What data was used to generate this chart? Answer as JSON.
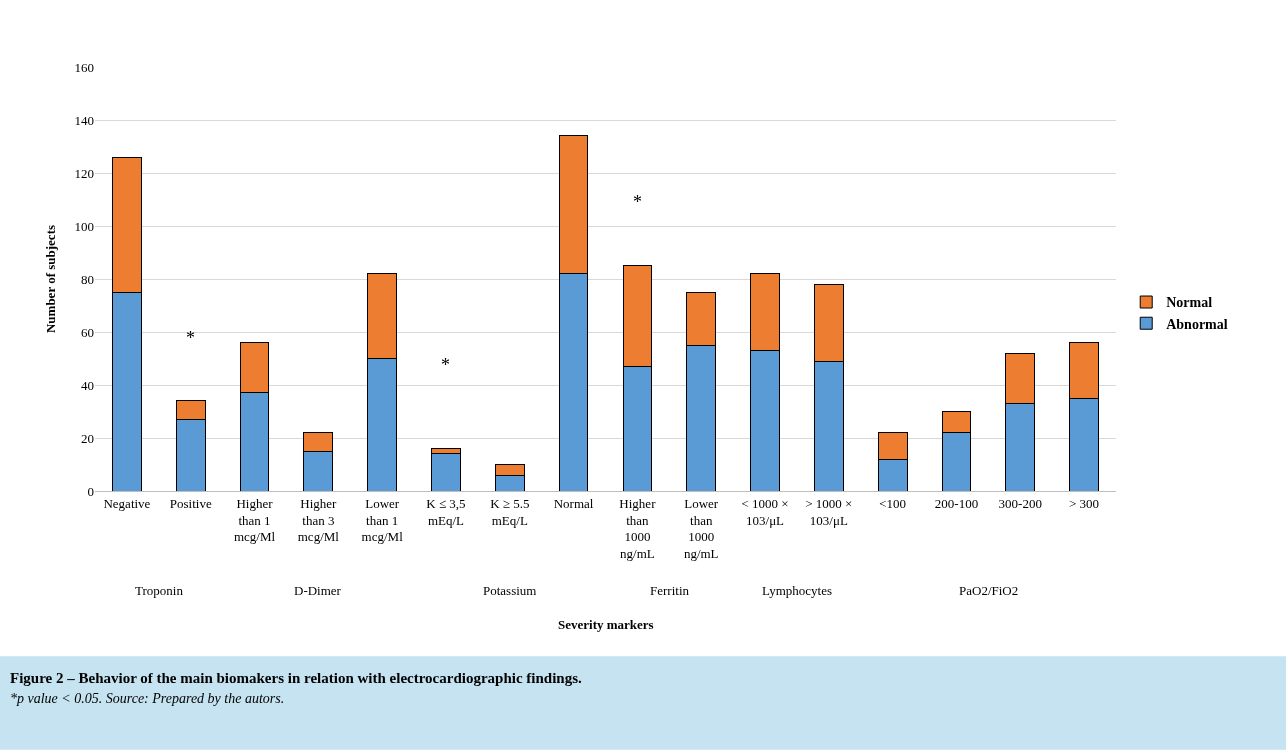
{
  "chart_data": {
    "type": "bar",
    "stacked": true,
    "title": "Figure 2 – Behavior of the main biomakers in relation with electrocardiographic findings.",
    "xlabel": "Severity markers",
    "ylabel": "Number of subjects",
    "categories": [
      "Negative",
      "Positive",
      "Higher than 1 mcg/Ml",
      "Higher than 3 mcg/Ml",
      "Lower than 1 mcg/Ml",
      "K ≤ 3,5 mEq/L",
      "K ≥ 5.5 mEq/L",
      "Normal",
      "Higher than 1000 ng/mL",
      "Lower than 1000 ng/mL",
      "< 1000 × 103/μL",
      "> 1000 × 103/μL",
      "<100",
      "200-100",
      "300-200",
      "> 300"
    ],
    "series": [
      {
        "name": "Abnormal",
        "color": "#5b9bd5",
        "values": [
          75,
          27,
          37,
          15,
          50,
          14,
          6,
          82,
          47,
          55,
          53,
          49,
          12,
          22,
          33,
          35
        ]
      },
      {
        "name": "Normal",
        "color": "#ed7d31",
        "values": [
          51,
          7,
          19,
          7,
          32,
          2,
          4,
          52,
          38,
          20,
          29,
          29,
          10,
          8,
          19,
          21
        ]
      }
    ],
    "ylim": [
      0,
      160
    ],
    "yticks": [
      0,
      20,
      40,
      60,
      80,
      100,
      120,
      140,
      160
    ],
    "grid": "y",
    "legend": "right",
    "annotations": [
      "Troponin",
      "D-Dimer",
      "Potassium",
      "Ferritin",
      "Lymphocytes",
      "PaO2/FiO2",
      "*",
      "*",
      "*",
      "*p value < 0.05. Source: Prepared by the autors."
    ]
  }
}
